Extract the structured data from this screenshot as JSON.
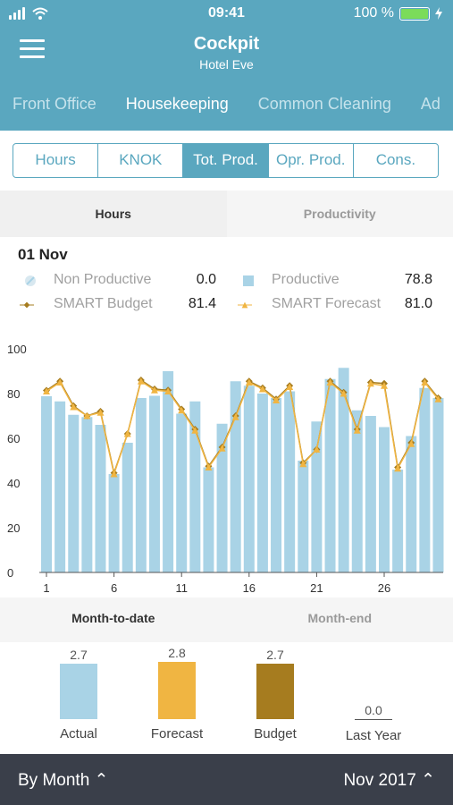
{
  "status_bar": {
    "time": "09:41",
    "battery": "100 %"
  },
  "header": {
    "title": "Cockpit",
    "subtitle": "Hotel Eve"
  },
  "departments": [
    "Front Office",
    "Housekeeping",
    "Common Cleaning",
    "Ad"
  ],
  "active_department": 1,
  "segments": [
    "Hours",
    "KNOK",
    "Tot. Prod.",
    "Opr. Prod.",
    "Cons."
  ],
  "active_segment": 2,
  "view_tabs": {
    "left": "Hours",
    "right": "Productivity"
  },
  "day": {
    "date": "01 Nov",
    "non_productive_label": "Non Productive",
    "non_productive_value": "0.0",
    "productive_label": "Productive",
    "productive_value": "78.8",
    "budget_label": "SMART Budget",
    "budget_value": "81.4",
    "forecast_label": "SMART Forecast",
    "forecast_value": "81.0"
  },
  "colors": {
    "header": "#5aa7bf",
    "productive": "#a9d3e6",
    "budget": "#a67c1f",
    "forecast": "#f0b542",
    "footer": "#3a3f4a"
  },
  "chart_data": {
    "type": "bar",
    "x": [
      1,
      2,
      3,
      4,
      5,
      6,
      7,
      8,
      9,
      10,
      11,
      12,
      13,
      14,
      15,
      16,
      17,
      18,
      19,
      20,
      21,
      22,
      23,
      24,
      25,
      26,
      27,
      28,
      29,
      30
    ],
    "xticks": [
      "1",
      "6",
      "11",
      "16",
      "21",
      "26"
    ],
    "ylim": [
      0,
      100
    ],
    "yticks": [
      "0",
      "20",
      "40",
      "60",
      "80",
      "100"
    ],
    "series": [
      {
        "name": "Productive",
        "type": "bar",
        "values": [
          78.8,
          76.5,
          70.5,
          69.5,
          66,
          44,
          58,
          78,
          79,
          90,
          71,
          76.5,
          47,
          66.5,
          85.5,
          83.5,
          80,
          78,
          81,
          50,
          67.5,
          86.5,
          91.5,
          72.5,
          70,
          65,
          46,
          61,
          82.5,
          78
        ]
      },
      {
        "name": "SMART Budget",
        "type": "line",
        "values": [
          81.4,
          85.5,
          74.5,
          70,
          72,
          44.5,
          62,
          86,
          82,
          81.5,
          73,
          64,
          47.5,
          56,
          70,
          85.5,
          82.5,
          77.5,
          83.5,
          49,
          55,
          85.5,
          80.5,
          64,
          85,
          84.5,
          47,
          58,
          85.5,
          78
        ]
      },
      {
        "name": "SMART Forecast",
        "type": "line",
        "values": [
          81,
          85,
          74,
          70,
          71.5,
          44,
          62,
          85.5,
          81.5,
          81,
          72.5,
          63.5,
          47,
          55.5,
          69.5,
          85,
          82,
          77,
          83,
          48.5,
          55,
          85,
          80,
          63.5,
          84.5,
          83.5,
          46.5,
          57.5,
          85,
          77.5
        ]
      }
    ]
  },
  "totals_tabs": {
    "left": "Month-to-date",
    "right": "Month-end"
  },
  "totals": [
    {
      "label": "Actual",
      "value": "2.7",
      "num": 2.7,
      "color": "#a9d3e6"
    },
    {
      "label": "Forecast",
      "value": "2.8",
      "num": 2.8,
      "color": "#f0b542"
    },
    {
      "label": "Budget",
      "value": "2.7",
      "num": 2.7,
      "color": "#a67c1f"
    },
    {
      "label": "Last Year",
      "value": "0.0",
      "num": 0.0,
      "color": "#555555"
    }
  ],
  "footer": {
    "period": "By Month",
    "month": "Nov 2017"
  }
}
